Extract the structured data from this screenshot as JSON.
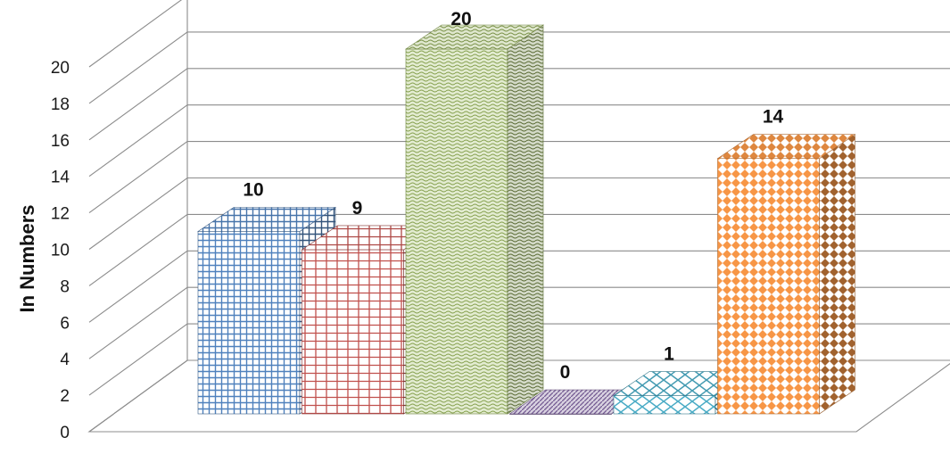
{
  "chart_data": {
    "type": "bar",
    "title": "",
    "xlabel": "",
    "ylabel": "In Numbers",
    "ylim": [
      0,
      20
    ],
    "yticks": [
      0,
      2,
      4,
      6,
      8,
      10,
      12,
      14,
      16,
      18,
      20
    ],
    "ytick_labels": [
      "0",
      "2",
      "4",
      "6",
      "8",
      "10",
      "12",
      "14",
      "16",
      "18",
      "20"
    ],
    "grid": true,
    "legend": "none",
    "style": "3d-column with hatch patterns",
    "categories": [
      "",
      "",
      "",
      "",
      "",
      ""
    ],
    "values": [
      10,
      9,
      20,
      0,
      1,
      14
    ],
    "value_labels": [
      "10",
      "9",
      "20",
      "0",
      "1",
      "14"
    ],
    "colors": [
      "#4f81bd",
      "#c0504d",
      "#9bbb59",
      "#8064a2",
      "#4bacc6",
      "#f79646"
    ]
  }
}
